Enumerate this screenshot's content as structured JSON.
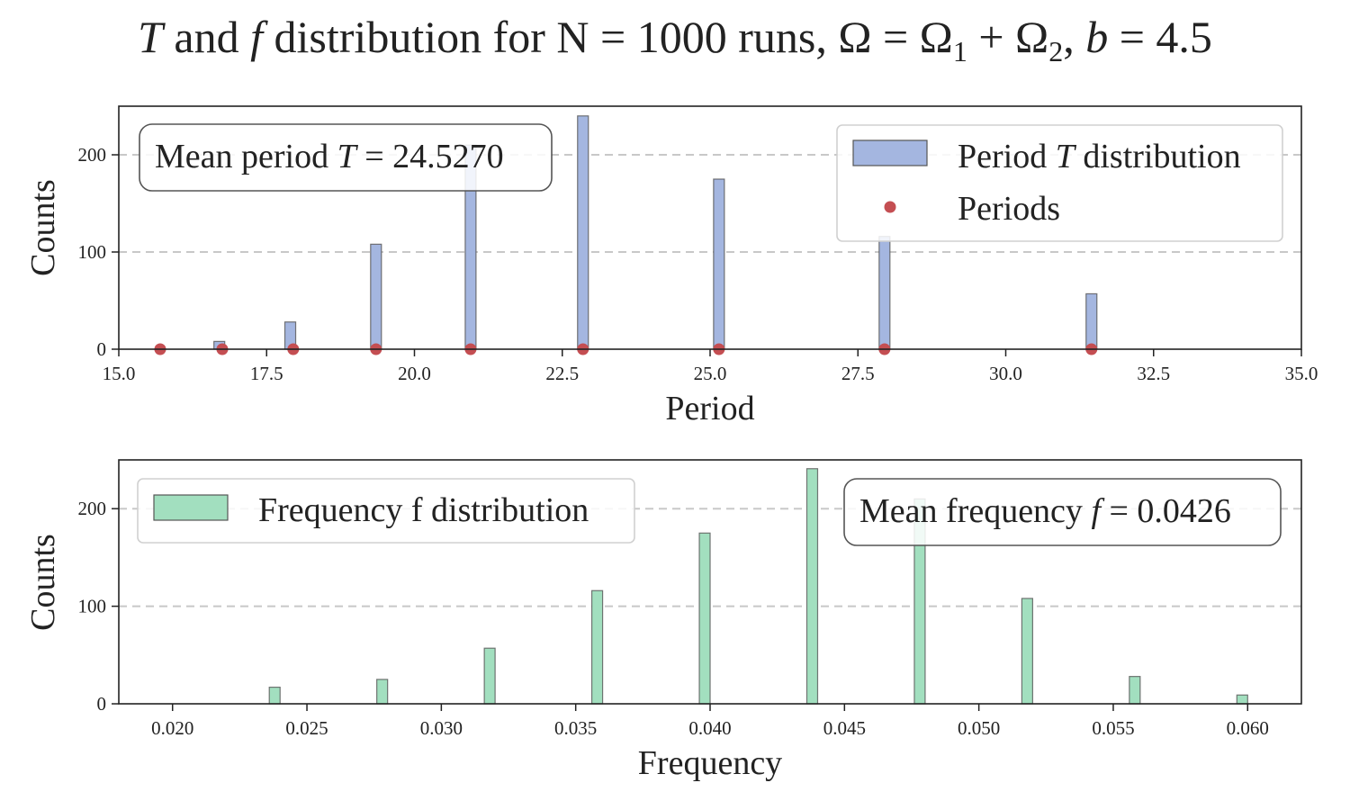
{
  "title": {
    "pre_italic": "T",
    "mid": " and ",
    "f_italic": "f",
    "rest": " distribution for N = 1000 runs, Ω = Ω",
    "sub1": "1",
    "plus": " + Ω",
    "sub2": "2",
    "comma": ", ",
    "b_italic": "b",
    "tail": " = 4.5"
  },
  "colors": {
    "period_bar": "#a4b6e0",
    "freq_bar": "#a2dfbf",
    "period_marker": "#c44e52",
    "bar_edge": "#555555"
  },
  "chart_data": [
    {
      "type": "bar",
      "xlabel": "Period",
      "ylabel": "Counts",
      "xlim": [
        15.0,
        35.0
      ],
      "ylim": [
        0,
        250
      ],
      "xticks": [
        "15.0",
        "17.5",
        "20.0",
        "22.5",
        "25.0",
        "27.5",
        "30.0",
        "32.5",
        "35.0"
      ],
      "yticks": [
        "0",
        "100",
        "200"
      ],
      "grid": "y dashed",
      "legend_position": "top-right",
      "series": [
        {
          "name": "Period T distribution",
          "legend_pre": "Period ",
          "legend_italic": "T",
          "legend_post": " distribution",
          "kind": "histogram",
          "x": [
            16.7,
            17.9,
            19.35,
            20.95,
            22.85,
            25.15,
            27.95,
            31.45
          ],
          "values": [
            8,
            28,
            108,
            210,
            240,
            175,
            116,
            57
          ]
        },
        {
          "name": "Periods",
          "kind": "markers",
          "x": [
            15.7,
            16.75,
            17.95,
            19.35,
            20.95,
            22.85,
            25.15,
            27.95,
            31.45
          ],
          "values": [
            0,
            0,
            0,
            0,
            0,
            0,
            0,
            0,
            0
          ]
        }
      ],
      "annotation": {
        "pre": "Mean period ",
        "italic": "T",
        "post": " = 24.5270",
        "position": "top-left"
      }
    },
    {
      "type": "bar",
      "xlabel": "Frequency",
      "ylabel": "Counts",
      "xlim": [
        0.018,
        0.062
      ],
      "ylim": [
        0,
        250
      ],
      "xticks": [
        "0.020",
        "0.025",
        "0.030",
        "0.035",
        "0.040",
        "0.045",
        "0.050",
        "0.055",
        "0.060"
      ],
      "yticks": [
        "0",
        "100",
        "200"
      ],
      "grid": "y dashed",
      "legend_position": "top-left",
      "series": [
        {
          "name": "Frequency f distribution",
          "kind": "histogram",
          "x": [
            0.0238,
            0.0278,
            0.0318,
            0.0358,
            0.0398,
            0.0438,
            0.0478,
            0.0518,
            0.0558,
            0.0598
          ],
          "values": [
            17,
            25,
            57,
            116,
            175,
            241,
            210,
            108,
            28,
            9
          ]
        }
      ],
      "annotation": {
        "pre": "Mean frequency ",
        "italic": "f",
        "post": " = 0.0426",
        "position": "top-right"
      }
    }
  ]
}
